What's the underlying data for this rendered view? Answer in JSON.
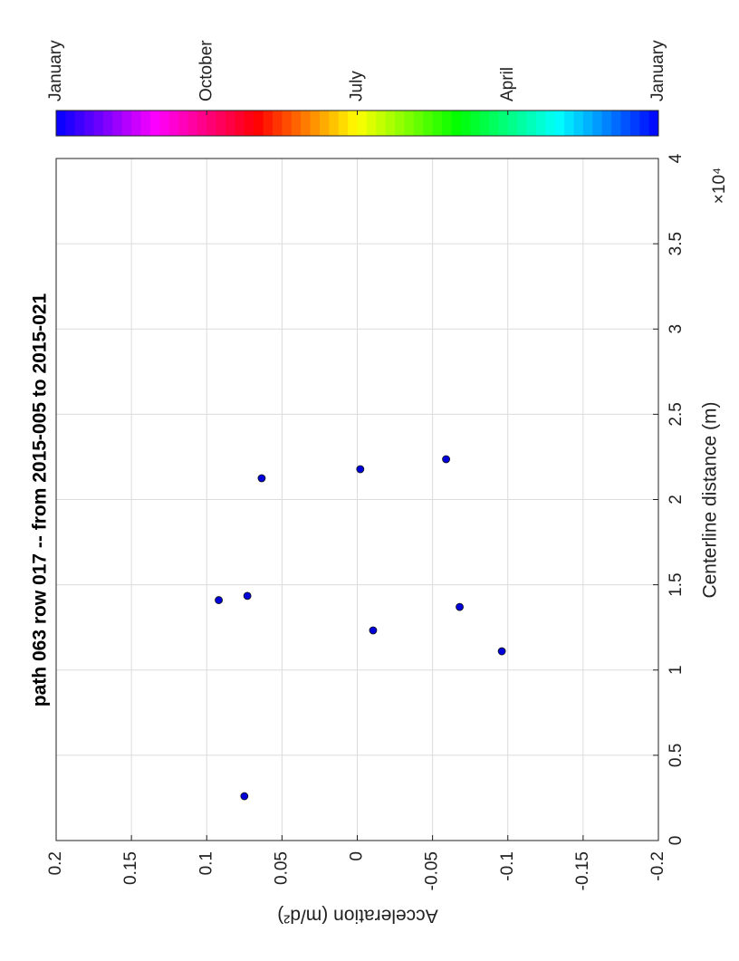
{
  "chart_data": {
    "type": "scatter",
    "title": "path 063 row 017  -- from 2015-005 to 2015-021",
    "x_label": "Centerline distance (m)",
    "y_label": "Acceleration (m/d²)",
    "x_exponent_label": "×10⁴",
    "x": [
      2600,
      14100,
      14350,
      21250,
      21780,
      12325,
      22365,
      13700,
      11100
    ],
    "values": [
      0.075,
      0.092,
      0.073,
      0.0635,
      -0.002,
      -0.0105,
      -0.059,
      -0.068,
      -0.096
    ],
    "color": "#0000d8",
    "xlim": [
      0,
      40000
    ],
    "xticks": [
      0,
      {
        "value": 5000,
        "label": "0.5"
      },
      {
        "value": 10000,
        "label": "1"
      },
      {
        "value": 15000,
        "label": "1.5"
      },
      {
        "value": 20000,
        "label": "2"
      },
      {
        "value": 25000,
        "label": "2.5"
      },
      {
        "value": 30000,
        "label": "3"
      },
      {
        "value": 35000,
        "label": "3.5"
      },
      {
        "value": 40000,
        "label": "4"
      }
    ],
    "ylim": [
      -0.2,
      0.2
    ],
    "yticks": [
      -0.2,
      -0.15,
      -0.1,
      -0.05,
      0,
      0.05,
      0.1,
      0.15,
      0.2
    ],
    "grid": true,
    "colormap": "hsv",
    "colorbar_labels": [
      "January",
      "October",
      "July",
      "April",
      "January"
    ]
  }
}
